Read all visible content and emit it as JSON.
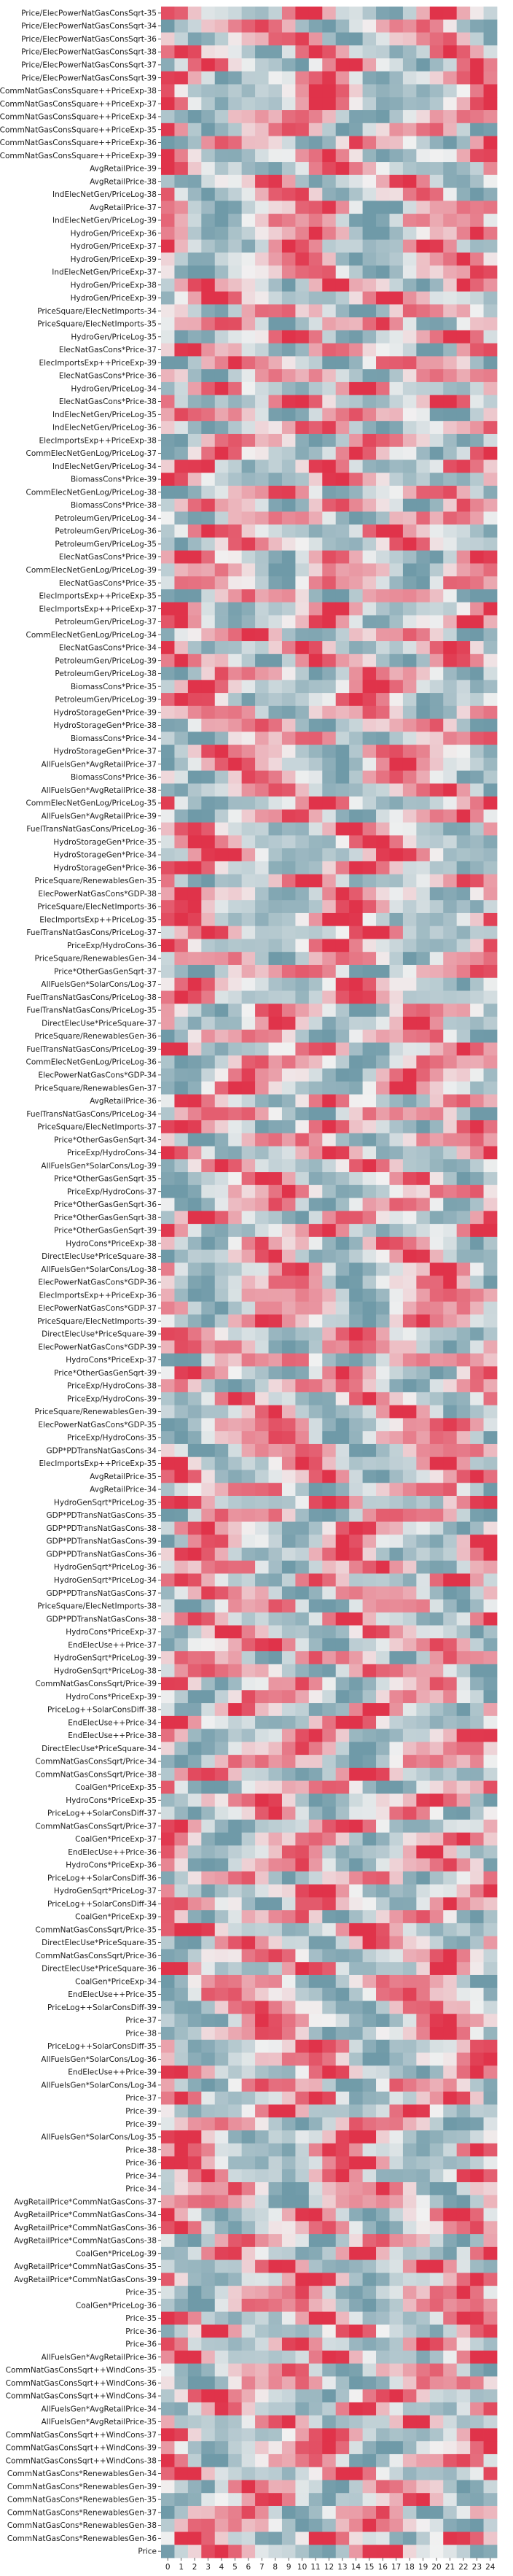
{
  "chart_data": {
    "type": "heatmap",
    "title": "",
    "xlabel": "",
    "ylabel": "",
    "columns": [
      0,
      1,
      2,
      3,
      4,
      5,
      6,
      7,
      8,
      9,
      10,
      11,
      12,
      13,
      14,
      15,
      16,
      17,
      18,
      19,
      20,
      21,
      22,
      23,
      24
    ],
    "colormap": {
      "low": "#6f9aa8",
      "mid": "#f1f1f1",
      "high": "#e0334a"
    },
    "value_range": [
      -1,
      1
    ],
    "colorbar": false,
    "rows": [
      "Price/ElecPowerNatGasConsSqrt-35",
      "Price/ElecPowerNatGasConsSqrt-34",
      "Price/ElecPowerNatGasConsSqrt-36",
      "Price/ElecPowerNatGasConsSqrt-38",
      "Price/ElecPowerNatGasConsSqrt-37",
      "Price/ElecPowerNatGasConsSqrt-39",
      "CommNatGasConsSquare++PriceExp-38",
      "CommNatGasConsSquare++PriceExp-37",
      "CommNatGasConsSquare++PriceExp-34",
      "CommNatGasConsSquare++PriceExp-35",
      "CommNatGasConsSquare++PriceExp-36",
      "CommNatGasConsSquare++PriceExp-39",
      "AvgRetailPrice-39",
      "AvgRetailPrice-38",
      "IndElecNetGen/PriceLog-38",
      "AvgRetailPrice-37",
      "IndElecNetGen/PriceLog-39",
      "HydroGen/PriceExp-36",
      "HydroGen/PriceExp-37",
      "HydroGen/PriceExp-39",
      "IndElecNetGen/PriceExp-37",
      "HydroGen/PriceExp-38",
      "HydroGen/PriceExp-39",
      "PriceSquare/ElecNetImports-34",
      "PriceSquare/ElecNetImports-35",
      "HydroGen/PriceLog-35",
      "ElecNatGasCons*Price-37",
      "ElecImportsExp++PriceExp-39",
      "ElecNatGasCons*Price-36",
      "HydroGen/PriceLog-34",
      "ElecNatGasCons*Price-38",
      "IndElecNetGen/PriceLog-35",
      "IndElecNetGen/PriceLog-36",
      "ElecImportsExp++PriceExp-38",
      "CommElecNetGenLog/PriceLog-37",
      "IndElecNetGen/PriceLog-34",
      "BiomassCons*Price-39",
      "CommElecNetGenLog/PriceLog-38",
      "BiomassCons*Price-38",
      "PetroleumGen/PriceLog-34",
      "PetroleumGen/PriceLog-36",
      "PetroleumGen/PriceLog-35",
      "ElecNatGasCons*Price-39",
      "CommElecNetGenLog/PriceLog-39",
      "ElecNatGasCons*Price-35",
      "ElecImportsExp++PriceExp-35",
      "ElecImportsExp++PriceExp-37",
      "PetroleumGen/PriceLog-37",
      "CommElecNetGenLog/PriceLog-34",
      "ElecNatGasCons*Price-34",
      "PetroleumGen/PriceLog-39",
      "PetroleumGen/PriceLog-38",
      "BiomassCons*Price-35",
      "PetroleumGen/PriceLog-39",
      "HydroStorageGen*Price-39",
      "HydroStorageGen*Price-38",
      "BiomassCons*Price-34",
      "HydroStorageGen*Price-37",
      "AllFuelsGen*AvgRetailPrice-37",
      "BiomassCons*Price-36",
      "AllFuelsGen*AvgRetailPrice-38",
      "CommElecNetGenLog/PriceLog-35",
      "AllFuelsGen*AvgRetailPrice-39",
      "FuelTransNatGasCons/PriceLog-36",
      "HydroStorageGen*Price-35",
      "HydroStorageGen*Price-34",
      "HydroStorageGen*Price-36",
      "PriceSquare/RenewablesGen-35",
      "ElecPowerNatGasCons*GDP-38",
      "PriceSquare/ElecNetImports-36",
      "ElecImportsExp++PriceLog-35",
      "FuelTransNatGasCons/PriceLog-37",
      "PriceExp/HydroCons-36",
      "PriceSquare/RenewablesGen-34",
      "Price*OtherGasGenSqrt-37",
      "AllFuelsGen*SolarCons/Log-37",
      "FuelTransNatGasCons/PriceLog-38",
      "FuelTransNatGasCons/PriceLog-35",
      "DirectElecUse*PriceSquare-37",
      "PriceSquare/RenewablesGen-36",
      "FuelTransNatGasCons/PriceLog-39",
      "CommElecNetGenLog/PriceLog-36",
      "ElecPowerNatGasCons*GDP-34",
      "PriceSquare/RenewablesGen-37",
      "AvgRetailPrice-36",
      "FuelTransNatGasCons/PriceLog-34",
      "PriceSquare/ElecNetImports-37",
      "Price*OtherGasGenSqrt-34",
      "PriceExp/HydroCons-34",
      "AllFuelsGen*SolarCons/Log-39",
      "Price*OtherGasGenSqrt-35",
      "PriceExp/HydroCons-37",
      "Price*OtherGasGenSqrt-36",
      "Price*OtherGasGenSqrt-38",
      "Price*OtherGasGenSqrt-39",
      "HydroCons*PriceExp-38",
      "DirectElecUse*PriceSquare-38",
      "AllFuelsGen*SolarCons/Log-38",
      "ElecPowerNatGasCons*GDP-36",
      "ElecImportsExp++PriceExp-36",
      "ElecPowerNatGasCons*GDP-37",
      "PriceSquare/ElecNetImports-39",
      "DirectElecUse*PriceSquare-39",
      "ElecPowerNatGasCons*GDP-39",
      "HydroCons*PriceExp-37",
      "Price*OtherGasGenSqrt-39",
      "PriceExp/HydroCons-38",
      "PriceExp/HydroCons-39",
      "PriceSquare/RenewablesGen-39",
      "ElecPowerNatGasCons*GDP-35",
      "PriceExp/HydroCons-35",
      "GDP*PDTransNatGasCons-34",
      "ElecImportsExp++PriceExp-35",
      "AvgRetailPrice-35",
      "AvgRetailPrice-34",
      "HydroGenSqrt*PriceLog-35",
      "GDP*PDTransNatGasCons-35",
      "GDP*PDTransNatGasCons-38",
      "GDP*PDTransNatGasCons-39",
      "GDP*PDTransNatGasCons-36",
      "HydroGenSqrt*PriceLog-36",
      "HydroGenSqrt*PriceLog-34",
      "GDP*PDTransNatGasCons-37",
      "PriceSquare/ElecNetImports-38",
      "GDP*PDTransNatGasCons-38",
      "HydroCons*PriceExp-37",
      "EndElecUse++Price-37",
      "HydroGenSqrt*PriceLog-39",
      "HydroGenSqrt*PriceLog-38",
      "CommNatGasConsSqrt/Price-39",
      "HydroCons*PriceExp-39",
      "PriceLog++SolarConsDiff-38",
      "EndElecUse++Price-34",
      "EndElecUse++Price-38",
      "DirectElecUse*PriceSquare-34",
      "CommNatGasConsSqrt/Price-34",
      "CommNatGasConsSqrt/Price-38",
      "CoalGen*PriceExp-35",
      "HydroCons*PriceExp-35",
      "PriceLog++SolarConsDiff-37",
      "CommNatGasConsSqrt/Price-37",
      "CoalGen*PriceExp-37",
      "EndElecUse++Price-36",
      "HydroCons*PriceExp-36",
      "PriceLog++SolarConsDiff-36",
      "HydroGenSqrt*PriceLog-37",
      "PriceLog++SolarConsDiff-34",
      "CoalGen*PriceExp-39",
      "CommNatGasConsSqrt/Price-35",
      "DirectElecUse*PriceSquare-35",
      "CommNatGasConsSqrt/Price-36",
      "DirectElecUse*PriceSquare-36",
      "CoalGen*PriceExp-34",
      "EndElecUse++Price-35",
      "PriceLog++SolarConsDiff-39",
      "Price-37",
      "Price-38",
      "PriceLog++SolarConsDiff-35",
      "AllFuelsGen*SolarCons/Log-36",
      "EndElecUse++Price-39",
      "AllFuelsGen*SolarCons/Log-34",
      "Price-37",
      "Price-39",
      "Price-39",
      "AllFuelsGen*SolarCons/Log-35",
      "Price-38",
      "Price-36",
      "Price-34",
      "Price-34",
      "AvgRetailPrice*CommNatGasCons-37",
      "AvgRetailPrice*CommNatGasCons-34",
      "AvgRetailPrice*CommNatGasCons-36",
      "AvgRetailPrice*CommNatGasCons-38",
      "CoalGen*PriceLog-39",
      "AvgRetailPrice*CommNatGasCons-35",
      "AvgRetailPrice*CommNatGasCons-39",
      "Price-35",
      "CoalGen*PriceLog-36",
      "Price-35",
      "Price-36",
      "Price-36",
      "AllFuelsGen*AvgRetailPrice-36",
      "CommNatGasConsSqrt++WindCons-35",
      "CommNatGasConsSqrt++WindCons-36",
      "CommNatGasConsSqrt++WindCons-34",
      "AllFuelsGen*AvgRetailPrice-34",
      "AllFuelsGen*AvgRetailPrice-35",
      "CommNatGasConsSqrt++WindCons-37",
      "CommNatGasConsSqrt++WindCons-39",
      "CommNatGasConsSqrt++WindCons-38",
      "CommNatGasCons*RenewablesGen-34",
      "CommNatGasCons*RenewablesGen-39",
      "CommNatGasCons*RenewablesGen-35",
      "CommNatGasCons*RenewablesGen-37",
      "CommNatGasCons*RenewablesGen-38",
      "CommNatGasCons*RenewablesGen-36",
      "Price"
    ]
  }
}
